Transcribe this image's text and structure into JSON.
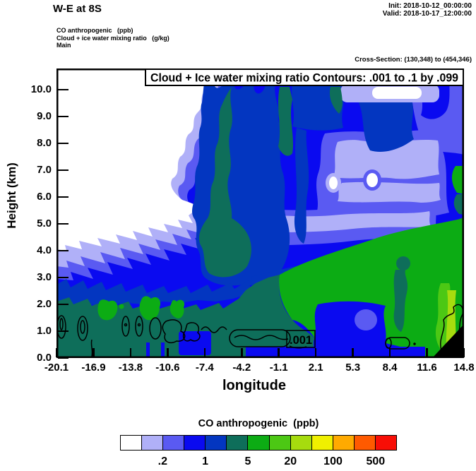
{
  "header": {
    "title": "W-E at 8S",
    "init_line": "Init: 2018-10-12_00:00:00",
    "valid_line": "Valid: 2018-10-17_12:00:00",
    "field_label_1": "CO anthropogenic   (ppb)",
    "field_label_2": "Cloud + ice water mixing ratio   (g/kg)",
    "field_label_3": "Main",
    "cross_section": "Cross-Section: (130,348) to (454,346)"
  },
  "chart_data": {
    "type": "heatmap",
    "subtype": "filled-contour-vertical-cross-section",
    "title": "Cloud + Ice water mixing ratio Contours: .001 to .1 by .099",
    "xlabel": "longitude",
    "ylabel": "Height (km)",
    "x_ticks": [
      "-20.1",
      "-16.9",
      "-13.8",
      "-10.6",
      "-7.4",
      "-4.2",
      "-1.1",
      "2.1",
      "5.3",
      "8.4",
      "11.6",
      "14.8"
    ],
    "y_ticks": [
      "0.0",
      "1.0",
      "2.0",
      "3.0",
      "4.0",
      "5.0",
      "6.0",
      "7.0",
      "8.0",
      "9.0",
      "10.0"
    ],
    "x_range": [
      -20.1,
      14.8
    ],
    "y_range_km": [
      0,
      10.8
    ],
    "grid": false,
    "shaded_variable": "CO anthropogenic (ppb)",
    "contour_overlay": {
      "variable": "Cloud + Ice water mixing ratio (g/kg)",
      "from": 0.001,
      "to": 0.1,
      "by": 0.099,
      "inline_label": ".001"
    },
    "colorbar": {
      "title": "CO anthropogenic  (ppb)",
      "position": "bottom",
      "colors": [
        "#ffffff",
        "#b0b0f8",
        "#5a5af2",
        "#0a0af0",
        "#0336c0",
        "#0e6e5a",
        "#0cac14",
        "#4cc814",
        "#a6dc0e",
        "#f0f000",
        "#ffaa00",
        "#ff5a00",
        "#f80e06"
      ],
      "labels": [
        ".2",
        "1",
        "5",
        "20",
        "100",
        "500"
      ],
      "label_boundary_indices": [
        2,
        4,
        6,
        8,
        10,
        12
      ]
    }
  }
}
